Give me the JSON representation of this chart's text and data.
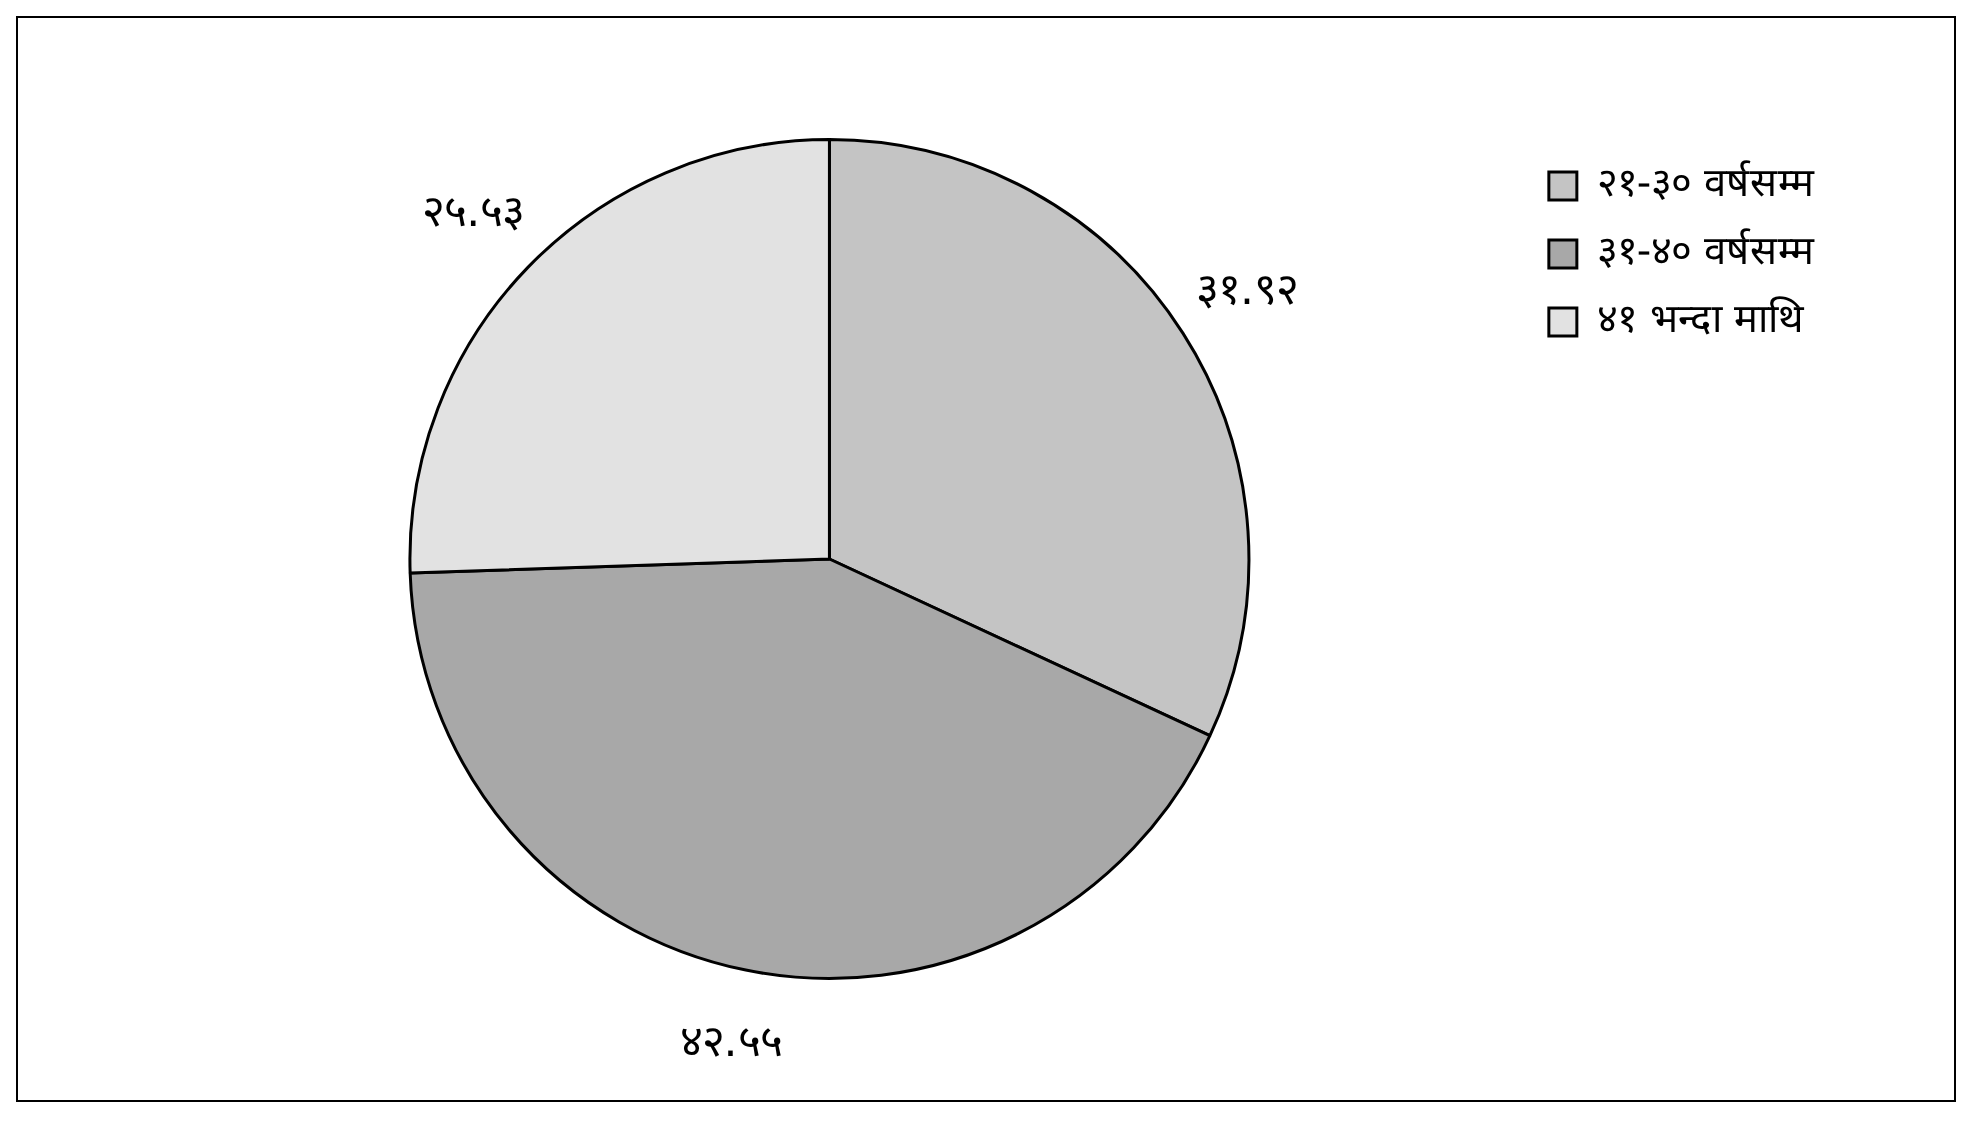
{
  "chart_data": {
    "type": "pie",
    "categories": [
      "२१-३० वर्षसम्म",
      "३१-४० वर्षसम्म",
      "४१ भन्दा माथि"
    ],
    "values": [
      31.92,
      42.55,
      25.53
    ],
    "value_labels": [
      "३१.९२",
      "४२.५५",
      "२५.५३"
    ],
    "colors": [
      "#c4c4c4",
      "#a8a8a8",
      "#e2e2e2"
    ],
    "legend": "top right"
  }
}
